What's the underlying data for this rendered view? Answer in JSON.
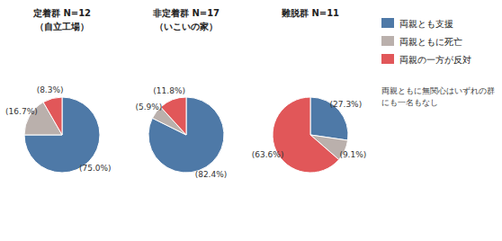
{
  "chart_data": [
    {
      "type": "pie",
      "title": "定着群  N=12",
      "subtitle": "（自立工場）",
      "values": [
        75.0,
        16.7,
        8.3
      ],
      "value_labels": [
        "(75.0%)",
        "(16.7%)",
        "(8.3%)"
      ],
      "colors": [
        "#4e79a7",
        "#bab0ac",
        "#e15759"
      ],
      "data_labels": true
    },
    {
      "type": "pie",
      "title": "非定着群  N=17",
      "subtitle": "（いこいの家）",
      "values": [
        82.4,
        5.9,
        11.8
      ],
      "value_labels": [
        "(82.4%)",
        "(5.9%)",
        "(11.8%)"
      ],
      "colors": [
        "#4e79a7",
        "#bab0ac",
        "#e15759"
      ],
      "data_labels": true
    },
    {
      "type": "pie",
      "title": "難脱群  N=11",
      "categories": [
        "両親とも支援",
        "両親ともに死亡",
        "両親の一方が反対"
      ],
      "values": [
        27.3,
        9.1,
        63.6
      ],
      "value_labels": [
        "(27.3%)",
        "(9.1%)",
        "(63.6%)"
      ],
      "colors": [
        "#4e79a7",
        "#bab0ac",
        "#e15759"
      ],
      "data_labels": true,
      "annotations": [
        "両親ともに無関心はいずれの群\nにも一名もなし"
      ]
    }
  ]
}
